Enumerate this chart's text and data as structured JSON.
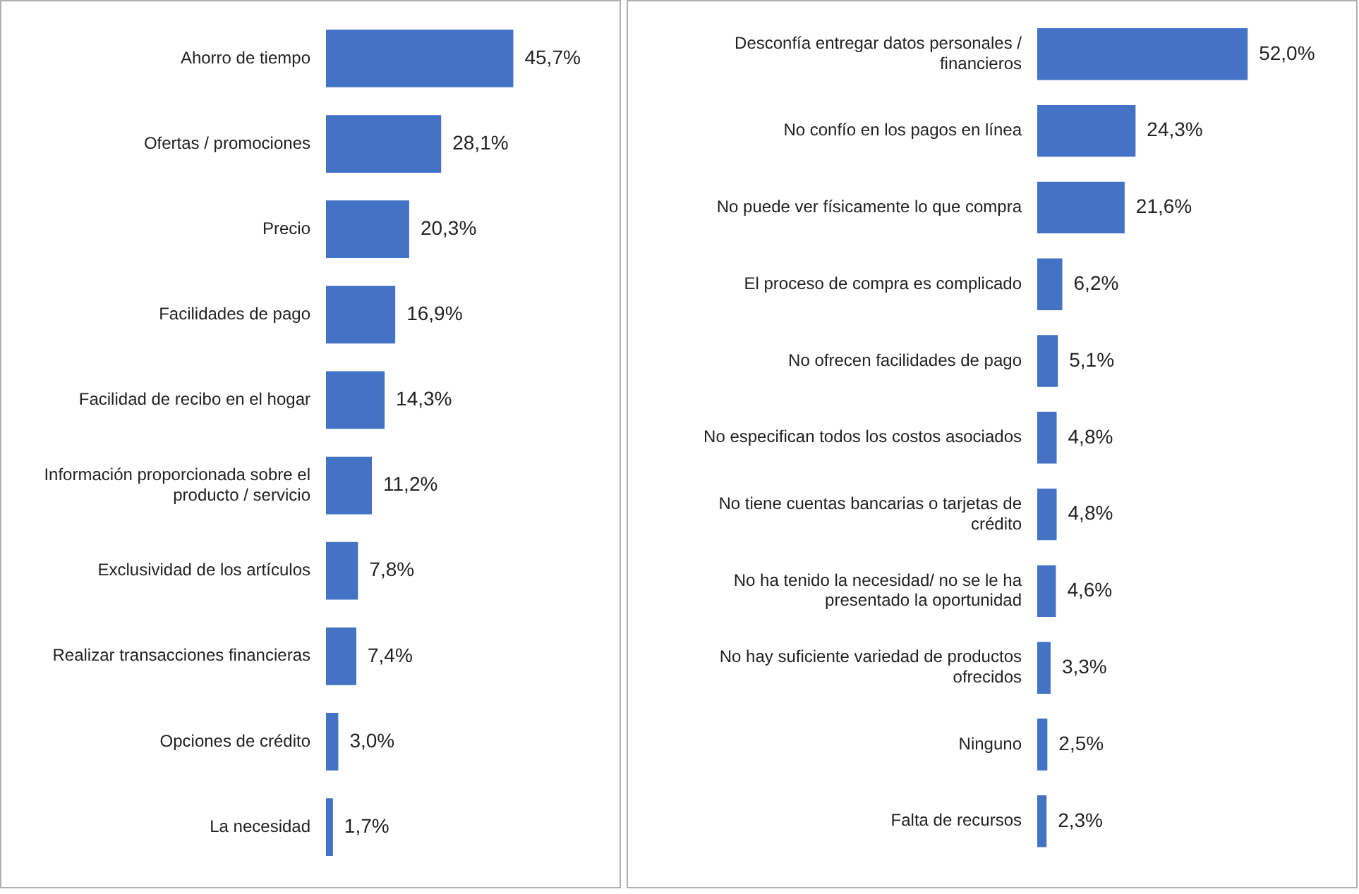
{
  "chart_data": [
    {
      "type": "bar",
      "orientation": "horizontal",
      "categories": [
        "Ahorro de tiempo",
        "Ofertas / promociones",
        "Precio",
        "Facilidades de pago",
        "Facilidad de recibo en el hogar",
        "Información proporcionada sobre el producto / servicio",
        "Exclusividad de los artículos",
        "Realizar transacciones financieras",
        "Opciones de crédito",
        "La necesidad"
      ],
      "values": [
        45.7,
        28.1,
        20.3,
        16.9,
        14.3,
        11.2,
        7.8,
        7.4,
        3.0,
        1.7
      ],
      "value_labels": [
        "45,7%",
        "28,1%",
        "20,3%",
        "16,9%",
        "14,3%",
        "11,2%",
        "7,8%",
        "7,4%",
        "3,0%",
        "1,7%"
      ],
      "color": "#4472c4"
    },
    {
      "type": "bar",
      "orientation": "horizontal",
      "categories": [
        "Desconfía entregar datos personales / financieros",
        "No confío en los pagos en línea",
        "No puede ver físicamente lo que compra",
        "El proceso de compra es complicado",
        "No ofrecen facilidades de pago",
        "No especifican todos los costos asociados",
        "No tiene cuentas bancarias o tarjetas de crédito",
        "No ha tenido la necesidad/ no se le ha presentado la oportunidad",
        "No hay suficiente variedad de productos ofrecidos",
        "Ninguno",
        "Falta de recursos"
      ],
      "values": [
        52.0,
        24.3,
        21.6,
        6.2,
        5.1,
        4.8,
        4.8,
        4.6,
        3.3,
        2.5,
        2.3
      ],
      "value_labels": [
        "52,0%",
        "24,3%",
        "21,6%",
        "6,2%",
        "5,1%",
        "4,8%",
        "4,8%",
        "4,6%",
        "3,3%",
        "2,5%",
        "2,3%"
      ],
      "color": "#4472c4"
    }
  ]
}
